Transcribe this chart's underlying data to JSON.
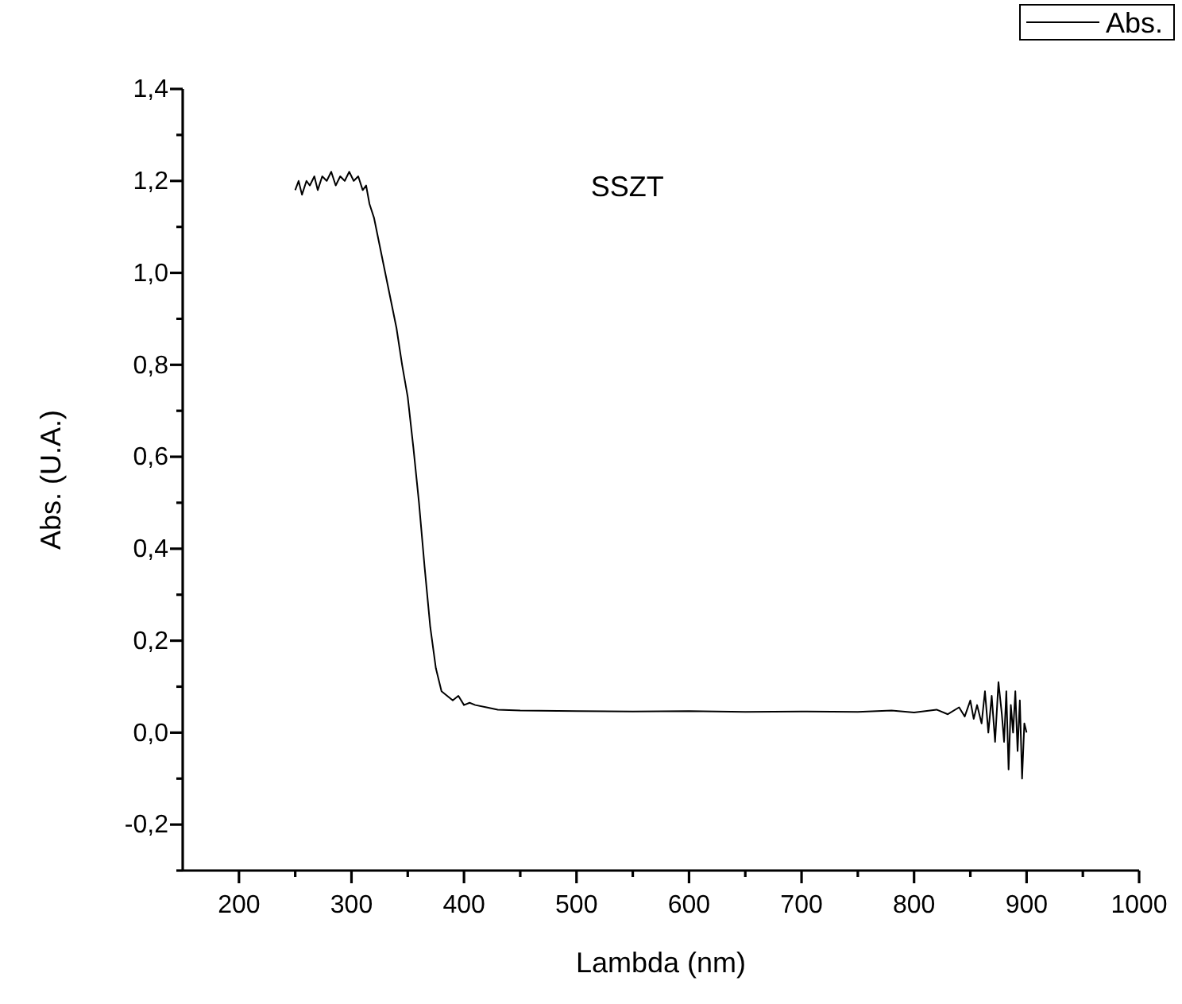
{
  "chart_data": {
    "type": "line",
    "xlabel": "Lambda (nm)",
    "ylabel": "Abs. (U.A.)",
    "legend": "top right",
    "annotations": [
      "SSZT"
    ],
    "xlim": [
      150,
      1000
    ],
    "ylim": [
      -0.3,
      1.4
    ],
    "xticks": [
      200,
      {
        "value": 250,
        "label": null
      },
      300,
      {
        "value": 350,
        "label": null
      },
      400,
      {
        "value": 450,
        "label": null
      },
      500,
      {
        "value": 550,
        "label": null
      },
      600,
      {
        "value": 650,
        "label": null
      },
      700,
      {
        "value": 750,
        "label": null
      },
      800,
      {
        "value": 850,
        "label": null
      },
      900,
      {
        "value": 950,
        "label": null
      },
      1000
    ],
    "yticks": [
      {
        "value": -0.3,
        "label": null
      },
      {
        "value": -0.2,
        "label": "-0,2"
      },
      {
        "value": -0.1,
        "label": null
      },
      {
        "value": 0,
        "label": "0,0"
      },
      {
        "value": 0.1,
        "label": null
      },
      {
        "value": 0.2,
        "label": "0,2"
      },
      {
        "value": 0.3,
        "label": null
      },
      {
        "value": 0.4,
        "label": "0,4"
      },
      {
        "value": 0.5,
        "label": null
      },
      {
        "value": 0.6,
        "label": "0,6"
      },
      {
        "value": 0.7,
        "label": null
      },
      {
        "value": 0.8,
        "label": "0,8"
      },
      {
        "value": 0.9,
        "label": null
      },
      {
        "value": 1.0,
        "label": "1,0"
      },
      {
        "value": 1.1,
        "label": null
      },
      {
        "value": 1.2,
        "label": "1,2"
      },
      {
        "value": 1.3,
        "label": null
      },
      {
        "value": 1.4,
        "label": "1,4"
      }
    ],
    "series": [
      {
        "name": "Abs.",
        "color": "#000000",
        "x": [
          250,
          253,
          256,
          260,
          263,
          267,
          270,
          274,
          278,
          282,
          286,
          290,
          294,
          298,
          302,
          306,
          310,
          313,
          316,
          320,
          325,
          330,
          335,
          340,
          345,
          350,
          355,
          360,
          365,
          370,
          375,
          380,
          385,
          390,
          395,
          400,
          405,
          410,
          420,
          430,
          450,
          500,
          550,
          600,
          650,
          700,
          750,
          780,
          800,
          820,
          830,
          840,
          845,
          850,
          853,
          856,
          860,
          863,
          866,
          869,
          872,
          875,
          878,
          880,
          882,
          884,
          886,
          888,
          890,
          892,
          894,
          896,
          898,
          900
        ],
        "values": [
          1.18,
          1.2,
          1.17,
          1.2,
          1.19,
          1.21,
          1.18,
          1.21,
          1.2,
          1.22,
          1.19,
          1.21,
          1.2,
          1.22,
          1.2,
          1.21,
          1.18,
          1.19,
          1.15,
          1.12,
          1.06,
          1.0,
          0.94,
          0.88,
          0.8,
          0.73,
          0.62,
          0.5,
          0.36,
          0.23,
          0.14,
          0.09,
          0.08,
          0.07,
          0.08,
          0.06,
          0.065,
          0.06,
          0.055,
          0.05,
          0.048,
          0.047,
          0.046,
          0.047,
          0.045,
          0.046,
          0.045,
          0.048,
          0.044,
          0.05,
          0.04,
          0.055,
          0.035,
          0.07,
          0.03,
          0.06,
          0.02,
          0.09,
          0.0,
          0.08,
          -0.02,
          0.11,
          0.04,
          -0.02,
          0.09,
          -0.08,
          0.06,
          0.0,
          0.09,
          -0.04,
          0.07,
          -0.1,
          0.02,
          0.0
        ]
      }
    ]
  }
}
